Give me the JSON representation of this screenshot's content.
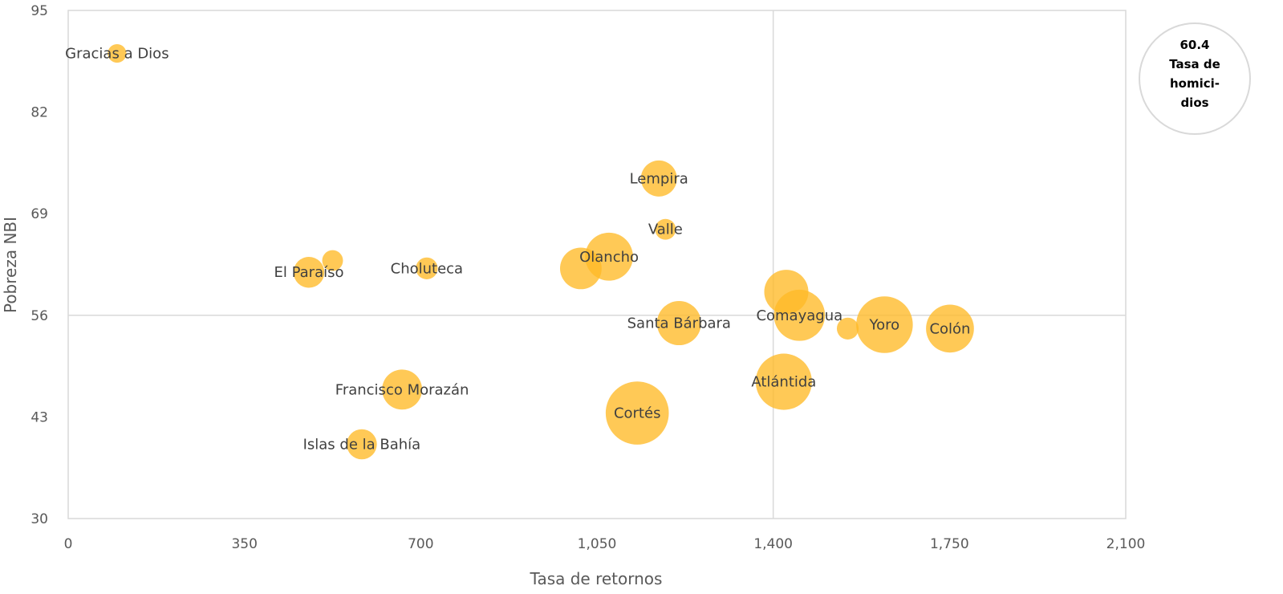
{
  "chart_data": {
    "type": "bubble",
    "xlabel": "Tasa de retornos",
    "ylabel": "Pobreza NBI",
    "xlim": [
      0,
      2100
    ],
    "ylim": [
      30,
      95
    ],
    "x_ticks": [
      "0",
      "350",
      "700",
      "1,050",
      "1,400",
      "1,750",
      "2,100"
    ],
    "x_tick_values": [
      0,
      350,
      700,
      1050,
      1400,
      1750,
      2100
    ],
    "y_ticks": [
      "30",
      "43",
      "56",
      "69",
      "82",
      "95"
    ],
    "y_tick_values": [
      30,
      43,
      56,
      69,
      82,
      95
    ],
    "reference_lines": {
      "x": 1400,
      "y": 56
    },
    "grid": false,
    "bubble_color": "#FFBA26",
    "size_legend": {
      "value": "60.4",
      "label": "Tasa de homici-dios",
      "lines": [
        "Tasa de",
        "homici-",
        "dios"
      ]
    },
    "points": [
      {
        "name": "Gracias a Dios",
        "label": "Gracias a Dios",
        "x": 97,
        "y": 89.5,
        "size": 8
      },
      {
        "name": "El Paraíso",
        "label": "El Paraíso",
        "x": 478,
        "y": 61.5,
        "size": 22
      },
      {
        "name": "",
        "label": "",
        "x": 525,
        "y": 63,
        "size": 10
      },
      {
        "name": "Choluteca",
        "label": "Choluteca",
        "x": 712,
        "y": 62,
        "size": 11
      },
      {
        "name": "Francisco Morazán",
        "label": "Francisco Morazán",
        "x": 663,
        "y": 46.5,
        "size": 37
      },
      {
        "name": "Islas de la Bahía",
        "label": "Islas de la Bahía",
        "x": 583,
        "y": 39.5,
        "size": 21
      },
      {
        "name": "",
        "label": "",
        "x": 1018,
        "y": 62,
        "size": 40
      },
      {
        "name": "Olancho",
        "label": "Olancho",
        "x": 1074,
        "y": 63.5,
        "size": 53
      },
      {
        "name": "Lempira",
        "label": "Lempira",
        "x": 1173,
        "y": 73.5,
        "size": 30
      },
      {
        "name": "Valle",
        "label": "Valle",
        "x": 1186,
        "y": 67,
        "size": 10
      },
      {
        "name": "Santa Bárbara",
        "label": "Santa Bárbara",
        "x": 1213,
        "y": 55,
        "size": 45
      },
      {
        "name": "Cortés",
        "label": "Cortés",
        "x": 1130,
        "y": 43.5,
        "size": 92
      },
      {
        "name": "Atlántida",
        "label": "Atlántida",
        "x": 1421,
        "y": 47.5,
        "size": 73
      },
      {
        "name": "",
        "label": "",
        "x": 1426,
        "y": 59,
        "size": 45
      },
      {
        "name": "Comayagua",
        "label": "Comayagua",
        "x": 1452,
        "y": 56,
        "size": 60.4
      },
      {
        "name": "",
        "label": "",
        "x": 1548,
        "y": 54.3,
        "size": 11
      },
      {
        "name": "Yoro",
        "label": "Yoro",
        "x": 1621,
        "y": 54.8,
        "size": 74
      },
      {
        "name": "Colón",
        "label": "Colón",
        "x": 1751,
        "y": 54.3,
        "size": 53
      }
    ]
  }
}
